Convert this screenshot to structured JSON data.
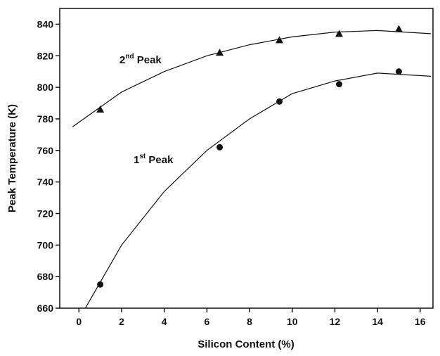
{
  "chart_data": {
    "type": "scatter",
    "x_label": "Silicon Content (%)",
    "y_label": "Peak Temperature (K)",
    "xlim": [
      -0.9,
      16.6
    ],
    "ylim": [
      660,
      850
    ],
    "xticks": [
      0,
      2,
      4,
      6,
      8,
      10,
      12,
      14,
      16
    ],
    "yticks": [
      660,
      680,
      700,
      720,
      740,
      760,
      780,
      800,
      820,
      840
    ],
    "series": [
      {
        "name": "1st Peak",
        "marker": "circle",
        "color": "#111111",
        "x": [
          1,
          6.6,
          9.4,
          12.2,
          15
        ],
        "values": [
          675,
          762,
          791,
          802,
          810
        ],
        "fit": {
          "x": [
            0.3,
            2,
            4,
            6,
            8,
            10,
            12,
            14,
            16.5
          ],
          "values": [
            660,
            700,
            734,
            760,
            780,
            796,
            804,
            809,
            807
          ]
        }
      },
      {
        "name": "2nd Peak",
        "marker": "triangle",
        "color": "#111111",
        "x": [
          1,
          6.6,
          9.4,
          12.2,
          15
        ],
        "values": [
          786,
          822,
          830,
          834,
          837
        ],
        "fit": {
          "x": [
            -0.3,
            2,
            4,
            6,
            8,
            10,
            12,
            14,
            16.5
          ],
          "values": [
            775,
            797,
            810,
            820,
            827,
            832,
            835,
            836,
            834
          ]
        }
      }
    ]
  }
}
